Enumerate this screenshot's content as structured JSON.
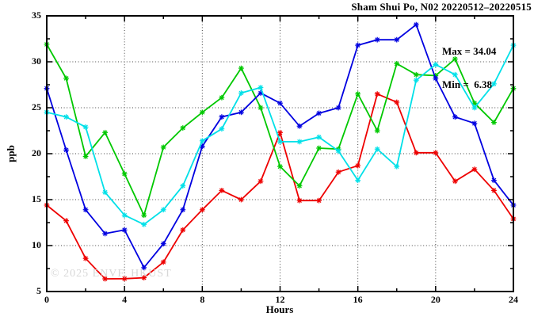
{
  "page": {
    "background": "#ffffff"
  },
  "title": "Sham Shui Po, N02 20220512–20220515",
  "stats": {
    "max_label": "Max = 34.04",
    "min_label": "Min =  6.38"
  },
  "watermark": "© 2025 ENVF, HKUST",
  "chart_data": {
    "type": "line",
    "title": "Sham Shui Po, N02 20220512–20220515",
    "xlabel": "Hours",
    "ylabel": "ppb",
    "xlim": [
      0,
      24
    ],
    "ylim": [
      5,
      35
    ],
    "x_ticks": [
      0,
      4,
      8,
      12,
      16,
      20,
      24
    ],
    "y_ticks": [
      5,
      10,
      15,
      20,
      25,
      30,
      35
    ],
    "x_minor_ticks": [
      2,
      6,
      10,
      14,
      18,
      22
    ],
    "y_minor_ticks": [
      7.5,
      12.5,
      17.5,
      22.5,
      27.5,
      32.5
    ],
    "x_gridlines": [
      4,
      8,
      12,
      16,
      20
    ],
    "y_gridlines": [
      10,
      15,
      20,
      25,
      30
    ],
    "grid_style": "dotted",
    "legend": "none",
    "annotations": {
      "max": 34.04,
      "min": 6.38
    },
    "x": [
      0,
      1,
      2,
      3,
      4,
      5,
      6,
      7,
      8,
      9,
      10,
      11,
      12,
      13,
      14,
      15,
      16,
      17,
      18,
      19,
      20,
      21,
      22,
      23,
      24
    ],
    "series": [
      {
        "name": "red",
        "color": "#ee0000",
        "values": [
          14.4,
          12.7,
          8.6,
          6.38,
          6.4,
          6.5,
          8.2,
          11.7,
          13.9,
          16.0,
          15.0,
          17.0,
          22.3,
          14.9,
          14.9,
          18.0,
          18.7,
          26.5,
          25.6,
          20.1,
          20.1,
          17.0,
          18.3,
          16.0,
          12.9
        ]
      },
      {
        "name": "green",
        "color": "#00c800",
        "values": [
          31.9,
          28.2,
          19.7,
          22.3,
          17.8,
          13.3,
          20.7,
          22.8,
          24.5,
          26.1,
          29.3,
          25.0,
          18.6,
          16.5,
          20.6,
          20.5,
          26.5,
          22.5,
          29.8,
          28.6,
          28.5,
          30.3,
          25.5,
          23.4,
          27.1
        ]
      },
      {
        "name": "blue",
        "color": "#0000e0",
        "values": [
          27.1,
          20.4,
          13.9,
          11.3,
          11.7,
          7.6,
          10.2,
          13.9,
          20.8,
          24.0,
          24.5,
          26.6,
          25.5,
          23.0,
          24.4,
          25.0,
          31.8,
          32.4,
          32.4,
          34.04,
          28.2,
          24.0,
          23.3,
          17.1,
          14.4
        ]
      },
      {
        "name": "cyan",
        "color": "#00e0e8",
        "values": [
          24.5,
          24.0,
          22.9,
          15.8,
          13.3,
          12.3,
          13.9,
          16.5,
          21.4,
          22.7,
          26.6,
          27.2,
          21.3,
          21.3,
          21.8,
          20.3,
          17.1,
          20.5,
          18.6,
          28.0,
          29.7,
          28.6,
          25.0,
          27.6,
          31.8
        ]
      }
    ]
  }
}
